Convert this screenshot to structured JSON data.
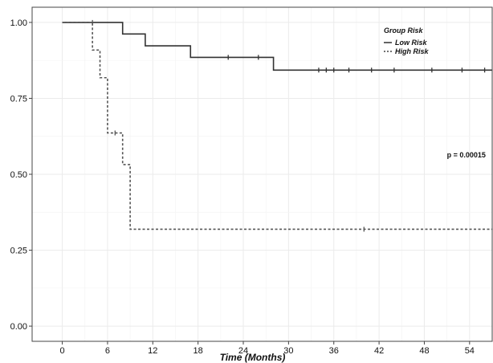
{
  "chart_data": {
    "type": "line",
    "subtype": "kaplan-meier step",
    "title": "",
    "xlabel": "Time (Months)",
    "ylabel": "",
    "xlim": [
      -4,
      57
    ],
    "ylim": [
      -0.05,
      1.05
    ],
    "x_ticks": [
      0,
      6,
      12,
      18,
      24,
      30,
      36,
      42,
      48,
      54
    ],
    "x_tick_labels": [
      "0",
      "6",
      "12",
      "18",
      "24",
      "30",
      "36",
      "42",
      "48",
      "54"
    ],
    "y_ticks": [
      0,
      0.25,
      0.5,
      0.75,
      1.0
    ],
    "y_tick_labels": [
      "0.00",
      "0.25",
      "0.50",
      "0.75",
      "1.00"
    ],
    "grid": true,
    "legend": {
      "title": "Group Risk",
      "position": "top-right",
      "entries": [
        {
          "label": "Low Risk",
          "style": "solid"
        },
        {
          "label": "High Risk",
          "style": "dashed"
        }
      ]
    },
    "annotations": [
      {
        "text": "p = 0.00015",
        "x": 51,
        "y": 0.555
      }
    ],
    "series": [
      {
        "name": "Low Risk",
        "style": "solid",
        "color": "#333333",
        "steps": [
          [
            0,
            1.0
          ],
          [
            8,
            0.962
          ],
          [
            11,
            0.923
          ],
          [
            17,
            0.885
          ],
          [
            28,
            0.843
          ],
          [
            57,
            0.843
          ]
        ],
        "censor_marks": [
          [
            22,
            0.885
          ],
          [
            26,
            0.885
          ],
          [
            34,
            0.843
          ],
          [
            35,
            0.843
          ],
          [
            36,
            0.843
          ],
          [
            38,
            0.843
          ],
          [
            41,
            0.843
          ],
          [
            44,
            0.843
          ],
          [
            49,
            0.843
          ],
          [
            53,
            0.843
          ],
          [
            56,
            0.843
          ]
        ]
      },
      {
        "name": "High Risk",
        "style": "dashed",
        "color": "#555555",
        "steps": [
          [
            0,
            1.0
          ],
          [
            4,
            0.909
          ],
          [
            5,
            0.818
          ],
          [
            6,
            0.636
          ],
          [
            8,
            0.532
          ],
          [
            9,
            0.319
          ],
          [
            57,
            0.319
          ]
        ],
        "censor_marks": [
          [
            4,
            1.0
          ],
          [
            7,
            0.636
          ],
          [
            40,
            0.319
          ]
        ]
      }
    ]
  }
}
